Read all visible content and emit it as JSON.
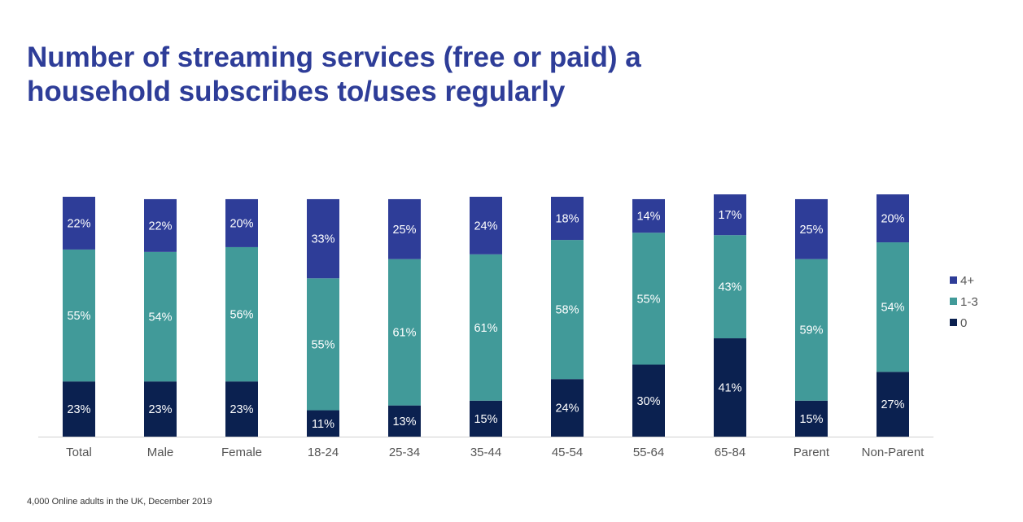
{
  "chart_data": {
    "type": "bar",
    "stacked": true,
    "title": "Number of streaming services (free or paid) a household subscribes to/uses regularly",
    "footnote": "4,000 Online adults in the UK, December 2019",
    "categories": [
      "Total",
      "Male",
      "Female",
      "18-24",
      "25-34",
      "35-44",
      "45-54",
      "55-64",
      "65-84",
      "Parent",
      "Non-Parent"
    ],
    "series": [
      {
        "name": "0",
        "color": "#0b2150",
        "values": [
          23,
          23,
          23,
          11,
          13,
          15,
          24,
          30,
          41,
          15,
          27
        ]
      },
      {
        "name": "1-3",
        "color": "#419a99",
        "values": [
          55,
          54,
          56,
          55,
          61,
          61,
          58,
          55,
          43,
          59,
          54
        ]
      },
      {
        "name": "4+",
        "color": "#2e3d98",
        "values": [
          22,
          22,
          20,
          33,
          25,
          24,
          18,
          14,
          17,
          25,
          20
        ]
      }
    ],
    "legend_order": [
      "4+",
      "1-3",
      "0"
    ],
    "legend_position": "right",
    "value_suffix": "%",
    "ylim": [
      0,
      100
    ],
    "grid": false
  }
}
